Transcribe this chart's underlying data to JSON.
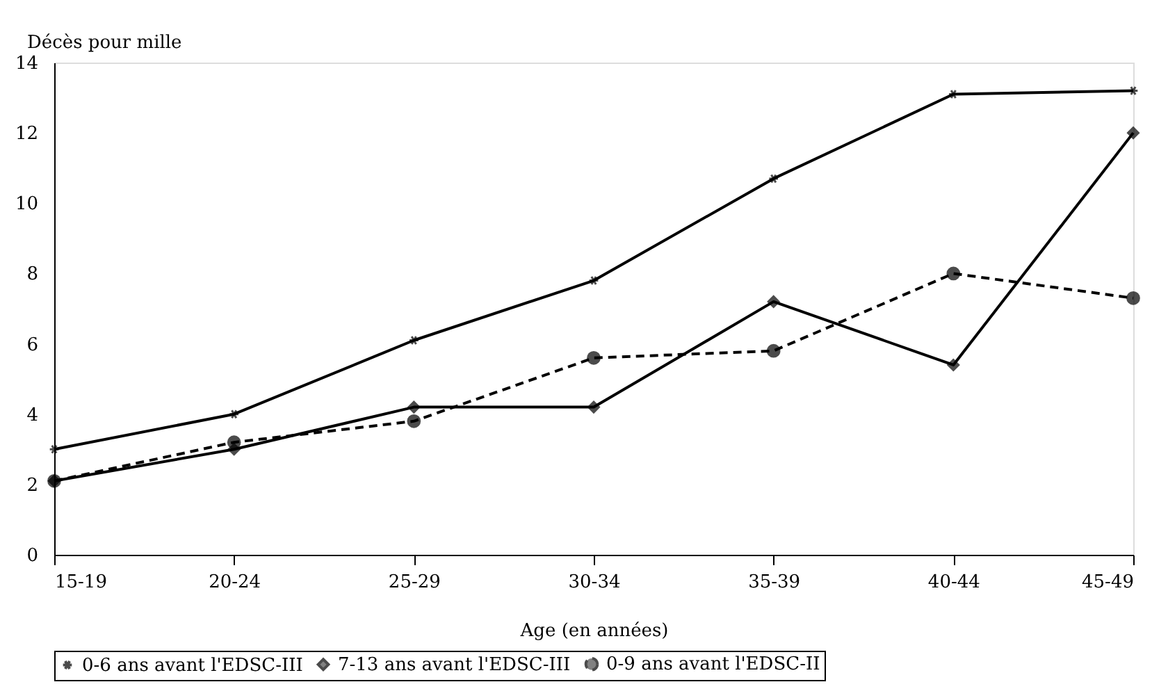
{
  "chart_data": {
    "type": "line",
    "ylabel": "Décès pour mille",
    "xlabel": "Age (en années)",
    "categories": [
      "15-19",
      "20-24",
      "25-29",
      "30-34",
      "35-39",
      "40-44",
      "45-49"
    ],
    "ylim": [
      0,
      14
    ],
    "yticks": [
      0,
      2,
      4,
      6,
      8,
      10,
      12,
      14
    ],
    "grid": false,
    "legend": "bottom",
    "series": [
      {
        "name": "0-6 ans avant l'EDSC-III",
        "color": "#000000",
        "marker": "cross",
        "line_style": "solid",
        "values": [
          3.0,
          4.0,
          6.1,
          7.8,
          10.7,
          13.1,
          13.2
        ]
      },
      {
        "name": "7-13 ans avant l'EDSC-III",
        "color": "#000000",
        "marker": "diamond",
        "line_style": "solid",
        "values": [
          2.1,
          3.0,
          4.2,
          4.2,
          7.2,
          5.4,
          12.0
        ]
      },
      {
        "name": "0-9 ans avant l'EDSC-II",
        "color": "#000000",
        "marker": "circle",
        "line_style": "dashed",
        "values": [
          2.1,
          3.2,
          3.8,
          5.6,
          5.8,
          8.0,
          7.3
        ]
      }
    ]
  }
}
